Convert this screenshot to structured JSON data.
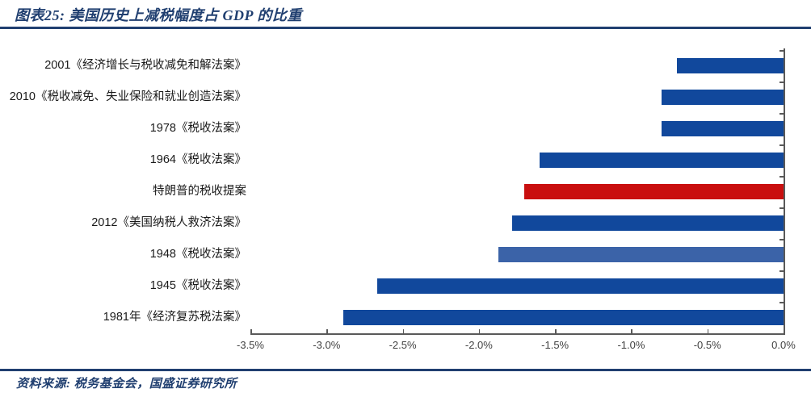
{
  "header": {
    "title": "图表25: 美国历史上减税幅度占 GDP 的比重"
  },
  "footer": {
    "source": "资料来源: 税务基金会，国盛证券研究所"
  },
  "colors": {
    "navy": "#203F70",
    "bar_blue": "#11489C",
    "bar_steel_blue": "#3B63A8",
    "bar_red": "#C90F0F",
    "axis": "#595959",
    "tick_label": "#3F3F3F"
  },
  "chart_data": {
    "type": "bar",
    "orientation": "horizontal",
    "title": "美国历史上减税幅度占 GDP 的比重",
    "categories": [
      "2001《经济增长与税收减免和解法案》",
      "2010《税收减免、失业保险和就业创造法案》",
      "1978《税收法案》",
      "1964《税收法案》",
      "特朗普的税收提案",
      "2012《美国纳税人救济法案》",
      "1948《税收法案》",
      "1945《税收法案》",
      "1981年《经济复苏税法案》"
    ],
    "values": [
      -0.7,
      -0.8,
      -0.8,
      -1.6,
      -1.7,
      -1.78,
      -1.87,
      -2.67,
      -2.89
    ],
    "bar_color_keys": [
      "bar_blue",
      "bar_blue",
      "bar_blue",
      "bar_blue",
      "bar_red",
      "bar_blue",
      "bar_steel_blue",
      "bar_blue",
      "bar_blue"
    ],
    "xlabel": "",
    "ylabel": "",
    "xlim": [
      -3.5,
      0
    ],
    "x_tick_labels": [
      "-3.5%",
      "-3.0%",
      "-2.5%",
      "-2.0%",
      "-1.5%",
      "-1.0%",
      "-0.5%",
      "0.0%"
    ],
    "grid": false,
    "legend": false,
    "value_unit": "% of GDP"
  }
}
